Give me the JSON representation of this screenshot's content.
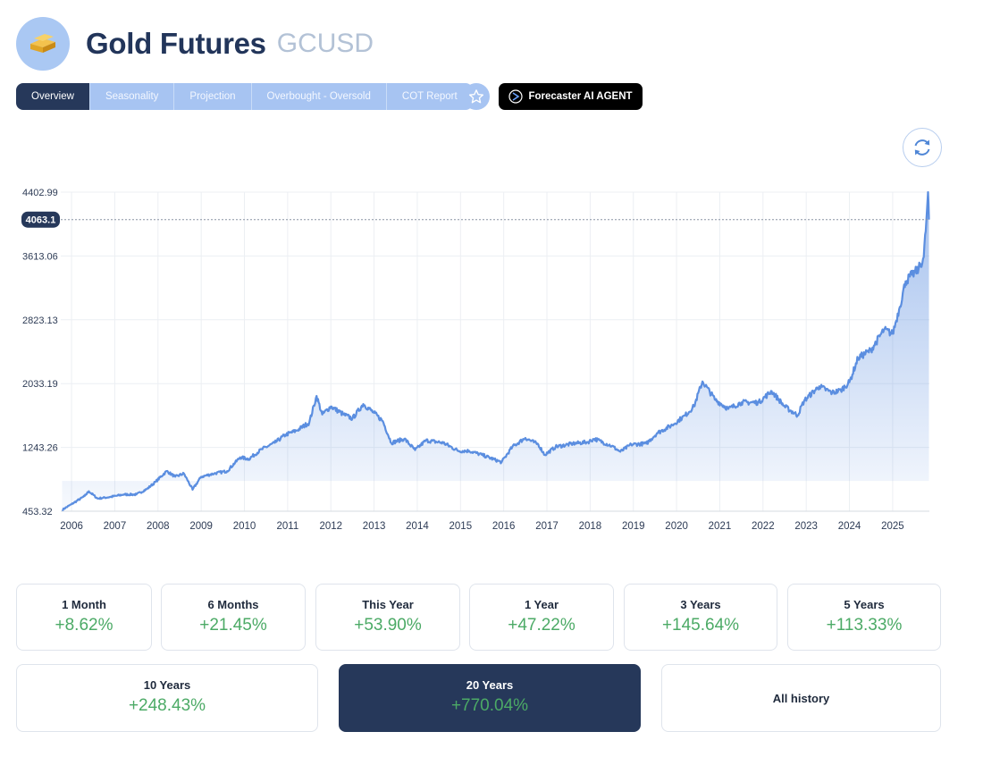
{
  "header": {
    "title": "Gold Futures",
    "ticker": "GCUSD",
    "logo_icon": "gold-bar-icon"
  },
  "tabs": [
    {
      "label": "Overview",
      "active": true
    },
    {
      "label": "Seasonality",
      "active": false
    },
    {
      "label": "Projection",
      "active": false
    },
    {
      "label": "Overbought - Oversold",
      "active": false
    },
    {
      "label": "COT Report",
      "active": false
    }
  ],
  "toolbar": {
    "favorite_icon": "star-icon",
    "ai_agent_label": "Forecaster AI AGENT",
    "refresh_icon": "refresh-icon"
  },
  "chart_data": {
    "type": "area",
    "title": "",
    "xlabel": "",
    "ylabel": "",
    "y_ticks": [
      "4402.99",
      "3613.06",
      "2823.13",
      "2033.19",
      "1243.26",
      "453.32"
    ],
    "x_ticks": [
      "2006",
      "2007",
      "2008",
      "2009",
      "2010",
      "2011",
      "2012",
      "2013",
      "2014",
      "2015",
      "2016",
      "2017",
      "2018",
      "2019",
      "2020",
      "2021",
      "2022",
      "2023",
      "2024",
      "2025"
    ],
    "ylim": [
      453.32,
      4402.99
    ],
    "xlim": [
      2005.75,
      2025.85
    ],
    "current_price": 4063.1,
    "current_price_label": "4063.1",
    "grid": true,
    "line_color": "#5b8ee0",
    "series": [
      {
        "values": [
          [
            2005.78,
            470
          ],
          [
            2006.0,
            540
          ],
          [
            2006.3,
            640
          ],
          [
            2006.4,
            700
          ],
          [
            2006.6,
            610
          ],
          [
            2006.9,
            630
          ],
          [
            2007.2,
            660
          ],
          [
            2007.5,
            660
          ],
          [
            2007.75,
            730
          ],
          [
            2007.95,
            820
          ],
          [
            2008.2,
            950
          ],
          [
            2008.4,
            880
          ],
          [
            2008.6,
            920
          ],
          [
            2008.8,
            720
          ],
          [
            2009.0,
            880
          ],
          [
            2009.3,
            920
          ],
          [
            2009.6,
            950
          ],
          [
            2009.9,
            1120
          ],
          [
            2010.1,
            1100
          ],
          [
            2010.4,
            1220
          ],
          [
            2010.7,
            1300
          ],
          [
            2010.95,
            1400
          ],
          [
            2011.2,
            1450
          ],
          [
            2011.5,
            1550
          ],
          [
            2011.67,
            1880
          ],
          [
            2011.8,
            1650
          ],
          [
            2012.0,
            1750
          ],
          [
            2012.3,
            1650
          ],
          [
            2012.5,
            1600
          ],
          [
            2012.75,
            1780
          ],
          [
            2013.0,
            1670
          ],
          [
            2013.2,
            1570
          ],
          [
            2013.4,
            1300
          ],
          [
            2013.7,
            1350
          ],
          [
            2013.95,
            1210
          ],
          [
            2014.2,
            1330
          ],
          [
            2014.6,
            1300
          ],
          [
            2014.95,
            1200
          ],
          [
            2015.2,
            1200
          ],
          [
            2015.5,
            1150
          ],
          [
            2015.95,
            1060
          ],
          [
            2016.2,
            1250
          ],
          [
            2016.5,
            1360
          ],
          [
            2016.8,
            1280
          ],
          [
            2016.95,
            1150
          ],
          [
            2017.2,
            1250
          ],
          [
            2017.6,
            1290
          ],
          [
            2017.95,
            1310
          ],
          [
            2018.1,
            1350
          ],
          [
            2018.5,
            1260
          ],
          [
            2018.7,
            1190
          ],
          [
            2018.95,
            1280
          ],
          [
            2019.3,
            1290
          ],
          [
            2019.55,
            1420
          ],
          [
            2019.9,
            1520
          ],
          [
            2020.2,
            1640
          ],
          [
            2020.4,
            1750
          ],
          [
            2020.6,
            2060
          ],
          [
            2020.9,
            1830
          ],
          [
            2021.2,
            1720
          ],
          [
            2021.5,
            1800
          ],
          [
            2021.9,
            1800
          ],
          [
            2022.2,
            1940
          ],
          [
            2022.5,
            1750
          ],
          [
            2022.8,
            1640
          ],
          [
            2022.95,
            1820
          ],
          [
            2023.3,
            2000
          ],
          [
            2023.6,
            1920
          ],
          [
            2023.8,
            1950
          ],
          [
            2024.0,
            2050
          ],
          [
            2024.2,
            2350
          ],
          [
            2024.5,
            2450
          ],
          [
            2024.8,
            2700
          ],
          [
            2025.0,
            2650
          ],
          [
            2025.15,
            2950
          ],
          [
            2025.3,
            3300
          ],
          [
            2025.45,
            3380
          ],
          [
            2025.6,
            3450
          ],
          [
            2025.72,
            3600
          ],
          [
            2025.78,
            4050
          ],
          [
            2025.82,
            4402.99
          ],
          [
            2025.84,
            4063.1
          ]
        ]
      }
    ]
  },
  "stats": [
    {
      "label": "1 Month",
      "value": "+8.62%"
    },
    {
      "label": "6 Months",
      "value": "+21.45%"
    },
    {
      "label": "This Year",
      "value": "+53.90%"
    },
    {
      "label": "1 Year",
      "value": "+47.22%"
    },
    {
      "label": "3 Years",
      "value": "+145.64%"
    },
    {
      "label": "5 Years",
      "value": "+113.33%"
    },
    {
      "label": "10 Years",
      "value": "+248.43%"
    },
    {
      "label": "20 Years",
      "value": "+770.04%",
      "selected": true
    },
    {
      "label": "All history"
    }
  ],
  "colors": {
    "accent": "#26385a",
    "tab": "#a7c4f2",
    "positive": "#4caa66"
  }
}
